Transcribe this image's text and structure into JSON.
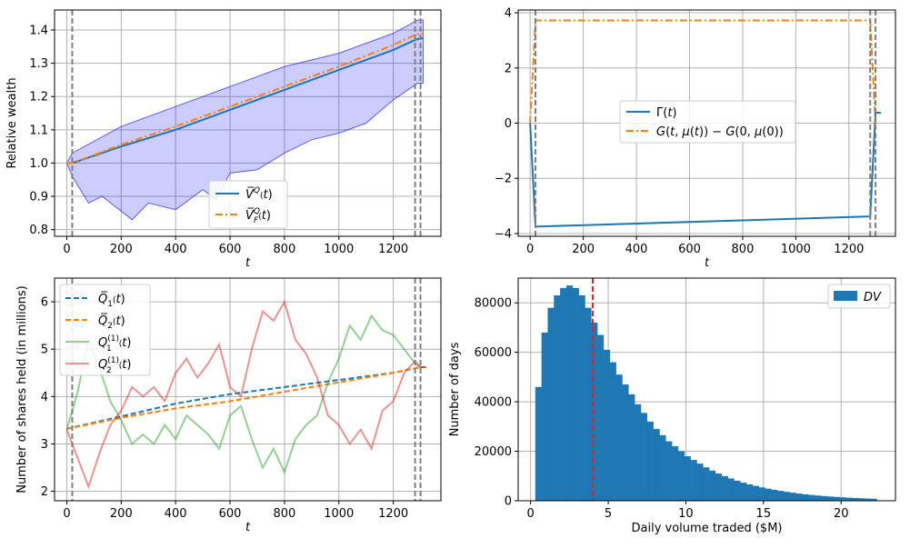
{
  "chart_data": [
    {
      "type": "line",
      "xlabel": "t",
      "ylabel": "Relative wealth",
      "xlim": [
        -45,
        1375
      ],
      "ylim": [
        0.78,
        1.46
      ],
      "xticks": [
        0,
        200,
        400,
        600,
        800,
        1000,
        1200
      ],
      "yticks": [
        0.8,
        0.9,
        1.0,
        1.1,
        1.2,
        1.3,
        1.4
      ],
      "grid": true,
      "legend": "lower-center",
      "vlines": [
        20,
        1280,
        1300
      ],
      "band": {
        "color": "#0000ff",
        "upper": [
          [
            0,
            1.0
          ],
          [
            20,
            1.03
          ],
          [
            200,
            1.11
          ],
          [
            400,
            1.17
          ],
          [
            600,
            1.23
          ],
          [
            800,
            1.29
          ],
          [
            1000,
            1.33
          ],
          [
            1200,
            1.39
          ],
          [
            1290,
            1.43
          ],
          [
            1310,
            1.43
          ]
        ],
        "lower": [
          [
            0,
            1.0
          ],
          [
            20,
            0.96
          ],
          [
            80,
            0.88
          ],
          [
            130,
            0.9
          ],
          [
            240,
            0.83
          ],
          [
            300,
            0.88
          ],
          [
            400,
            0.86
          ],
          [
            500,
            0.92
          ],
          [
            550,
            0.89
          ],
          [
            600,
            0.97
          ],
          [
            700,
            0.98
          ],
          [
            800,
            1.03
          ],
          [
            900,
            1.07
          ],
          [
            1000,
            1.09
          ],
          [
            1100,
            1.12
          ],
          [
            1200,
            1.19
          ],
          [
            1290,
            1.24
          ],
          [
            1310,
            1.24
          ]
        ]
      },
      "series": [
        {
          "name": "V̅^Q(t)",
          "color": "#1f77b4",
          "dash": "solid",
          "x": [
            0,
            20,
            200,
            400,
            600,
            800,
            1000,
            1200,
            1280,
            1300,
            1310
          ],
          "y": [
            1.0,
            1.0,
            1.05,
            1.1,
            1.16,
            1.22,
            1.28,
            1.34,
            1.37,
            1.375,
            1.375
          ]
        },
        {
          "name": "V̅_F^Q(t)",
          "color": "#ff7f0e",
          "dash": "dashdot",
          "x": [
            0,
            20,
            200,
            400,
            600,
            800,
            1000,
            1200,
            1280,
            1300,
            1310
          ],
          "y": [
            1.0,
            1.0,
            1.055,
            1.11,
            1.17,
            1.23,
            1.29,
            1.355,
            1.385,
            1.39,
            1.39
          ]
        }
      ]
    },
    {
      "type": "line",
      "xlabel": "t",
      "ylabel": "",
      "xlim": [
        -45,
        1375
      ],
      "ylim": [
        -4.1,
        4.1
      ],
      "xticks": [
        0,
        200,
        400,
        600,
        800,
        1000,
        1200
      ],
      "yticks": [
        -4,
        -2,
        0,
        2,
        4
      ],
      "grid": true,
      "legend": "center",
      "vlines": [
        20,
        1280,
        1300
      ],
      "series": [
        {
          "name": "Γ(t)",
          "color": "#1f77b4",
          "dash": "solid",
          "x": [
            0,
            20,
            1280,
            1300,
            1301,
            1320
          ],
          "y": [
            0,
            -3.75,
            -3.38,
            0.38,
            0.38,
            0.38
          ]
        },
        {
          "name": "G(t, μ(t)) − G(0, μ(0))",
          "color": "#ff7f0e",
          "dash": "dashdot",
          "x": [
            0,
            20,
            1280,
            1300
          ],
          "y": [
            0,
            3.72,
            3.72,
            0
          ]
        }
      ]
    },
    {
      "type": "line",
      "xlabel": "t",
      "ylabel": "Number of shares held (in millions)",
      "xlim": [
        -45,
        1375
      ],
      "ylim": [
        1.8,
        6.5
      ],
      "xticks": [
        0,
        200,
        400,
        600,
        800,
        1000,
        1200
      ],
      "yticks": [
        2,
        3,
        4,
        5,
        6
      ],
      "grid": true,
      "legend": "upper-left",
      "vlines": [
        20,
        1280,
        1300
      ],
      "series": [
        {
          "name": "Q̅1(t)",
          "color": "#1f77b4",
          "dash": "dashed",
          "x": [
            0,
            200,
            400,
            600,
            800,
            1000,
            1200,
            1300,
            1320
          ],
          "y": [
            3.32,
            3.58,
            3.85,
            4.05,
            4.2,
            4.35,
            4.5,
            4.62,
            4.62
          ]
        },
        {
          "name": "Q̅2(t)",
          "color": "#ff7f0e",
          "dash": "dashed",
          "x": [
            0,
            200,
            400,
            600,
            800,
            1000,
            1200,
            1300,
            1320
          ],
          "y": [
            3.32,
            3.55,
            3.75,
            3.9,
            4.1,
            4.3,
            4.5,
            4.62,
            4.62
          ]
        },
        {
          "name": "Q1(1)(t)",
          "color": "#2ca02c",
          "dash": "solid",
          "opacity": 0.5,
          "x": [
            0,
            40,
            80,
            120,
            160,
            200,
            240,
            280,
            320,
            360,
            400,
            440,
            480,
            520,
            560,
            600,
            640,
            680,
            720,
            760,
            800,
            840,
            880,
            920,
            960,
            1000,
            1040,
            1080,
            1120,
            1160,
            1200,
            1240,
            1280,
            1300,
            1320
          ],
          "y": [
            3.3,
            4.1,
            5.2,
            4.6,
            3.9,
            3.5,
            3.0,
            3.2,
            3.0,
            3.4,
            3.1,
            3.6,
            3.4,
            3.2,
            2.9,
            3.6,
            3.8,
            3.1,
            2.5,
            2.9,
            2.4,
            3.1,
            3.4,
            3.6,
            4.3,
            4.8,
            5.5,
            5.2,
            5.7,
            5.4,
            5.3,
            5.0,
            4.7,
            4.62,
            4.62
          ]
        },
        {
          "name": "Q2(1)(t)",
          "color": "#d62728",
          "dash": "solid",
          "opacity": 0.5,
          "x": [
            0,
            40,
            80,
            120,
            160,
            200,
            240,
            280,
            320,
            360,
            400,
            440,
            480,
            520,
            560,
            600,
            640,
            680,
            720,
            760,
            800,
            840,
            880,
            920,
            960,
            1000,
            1040,
            1080,
            1120,
            1160,
            1200,
            1240,
            1280,
            1300,
            1320
          ],
          "y": [
            3.3,
            2.7,
            2.1,
            2.8,
            3.4,
            3.7,
            4.2,
            4.0,
            4.2,
            3.9,
            4.5,
            4.8,
            4.4,
            4.7,
            5.1,
            4.2,
            4.0,
            5.0,
            5.8,
            5.6,
            6.0,
            5.2,
            4.9,
            4.4,
            3.6,
            3.4,
            3.0,
            3.3,
            2.9,
            3.7,
            3.9,
            4.5,
            4.75,
            4.62,
            4.62
          ]
        }
      ]
    },
    {
      "type": "bar",
      "xlabel": "Daily volume traded ($M)",
      "ylabel": "Number of days",
      "xlim": [
        -0.8,
        23.5
      ],
      "ylim": [
        0,
        90000
      ],
      "xticks": [
        0,
        5,
        10,
        15,
        20
      ],
      "yticks": [
        0,
        20000,
        40000,
        60000,
        80000
      ],
      "grid": true,
      "legend": "upper-right",
      "bin_start": 0.3,
      "bin_width": 0.4,
      "values": [
        46000,
        68000,
        78000,
        83000,
        86000,
        87000,
        86000,
        83000,
        78000,
        72000,
        67000,
        61000,
        56000,
        51000,
        47000,
        43000,
        39000,
        35500,
        32000,
        29000,
        26500,
        24000,
        22000,
        20000,
        18000,
        16500,
        15000,
        13500,
        12200,
        11000,
        10000,
        9000,
        8100,
        7300,
        6600,
        6000,
        5400,
        4900,
        4400,
        4000,
        3600,
        3250,
        2900,
        2600,
        2350,
        2100,
        1900,
        1700,
        1550,
        1400,
        1250,
        1120,
        1000,
        900,
        800
      ],
      "bar_color": "#1f77b4",
      "vline": {
        "x": 4.0,
        "color": "#d62728"
      },
      "series": [
        {
          "name": "DV"
        }
      ]
    }
  ]
}
